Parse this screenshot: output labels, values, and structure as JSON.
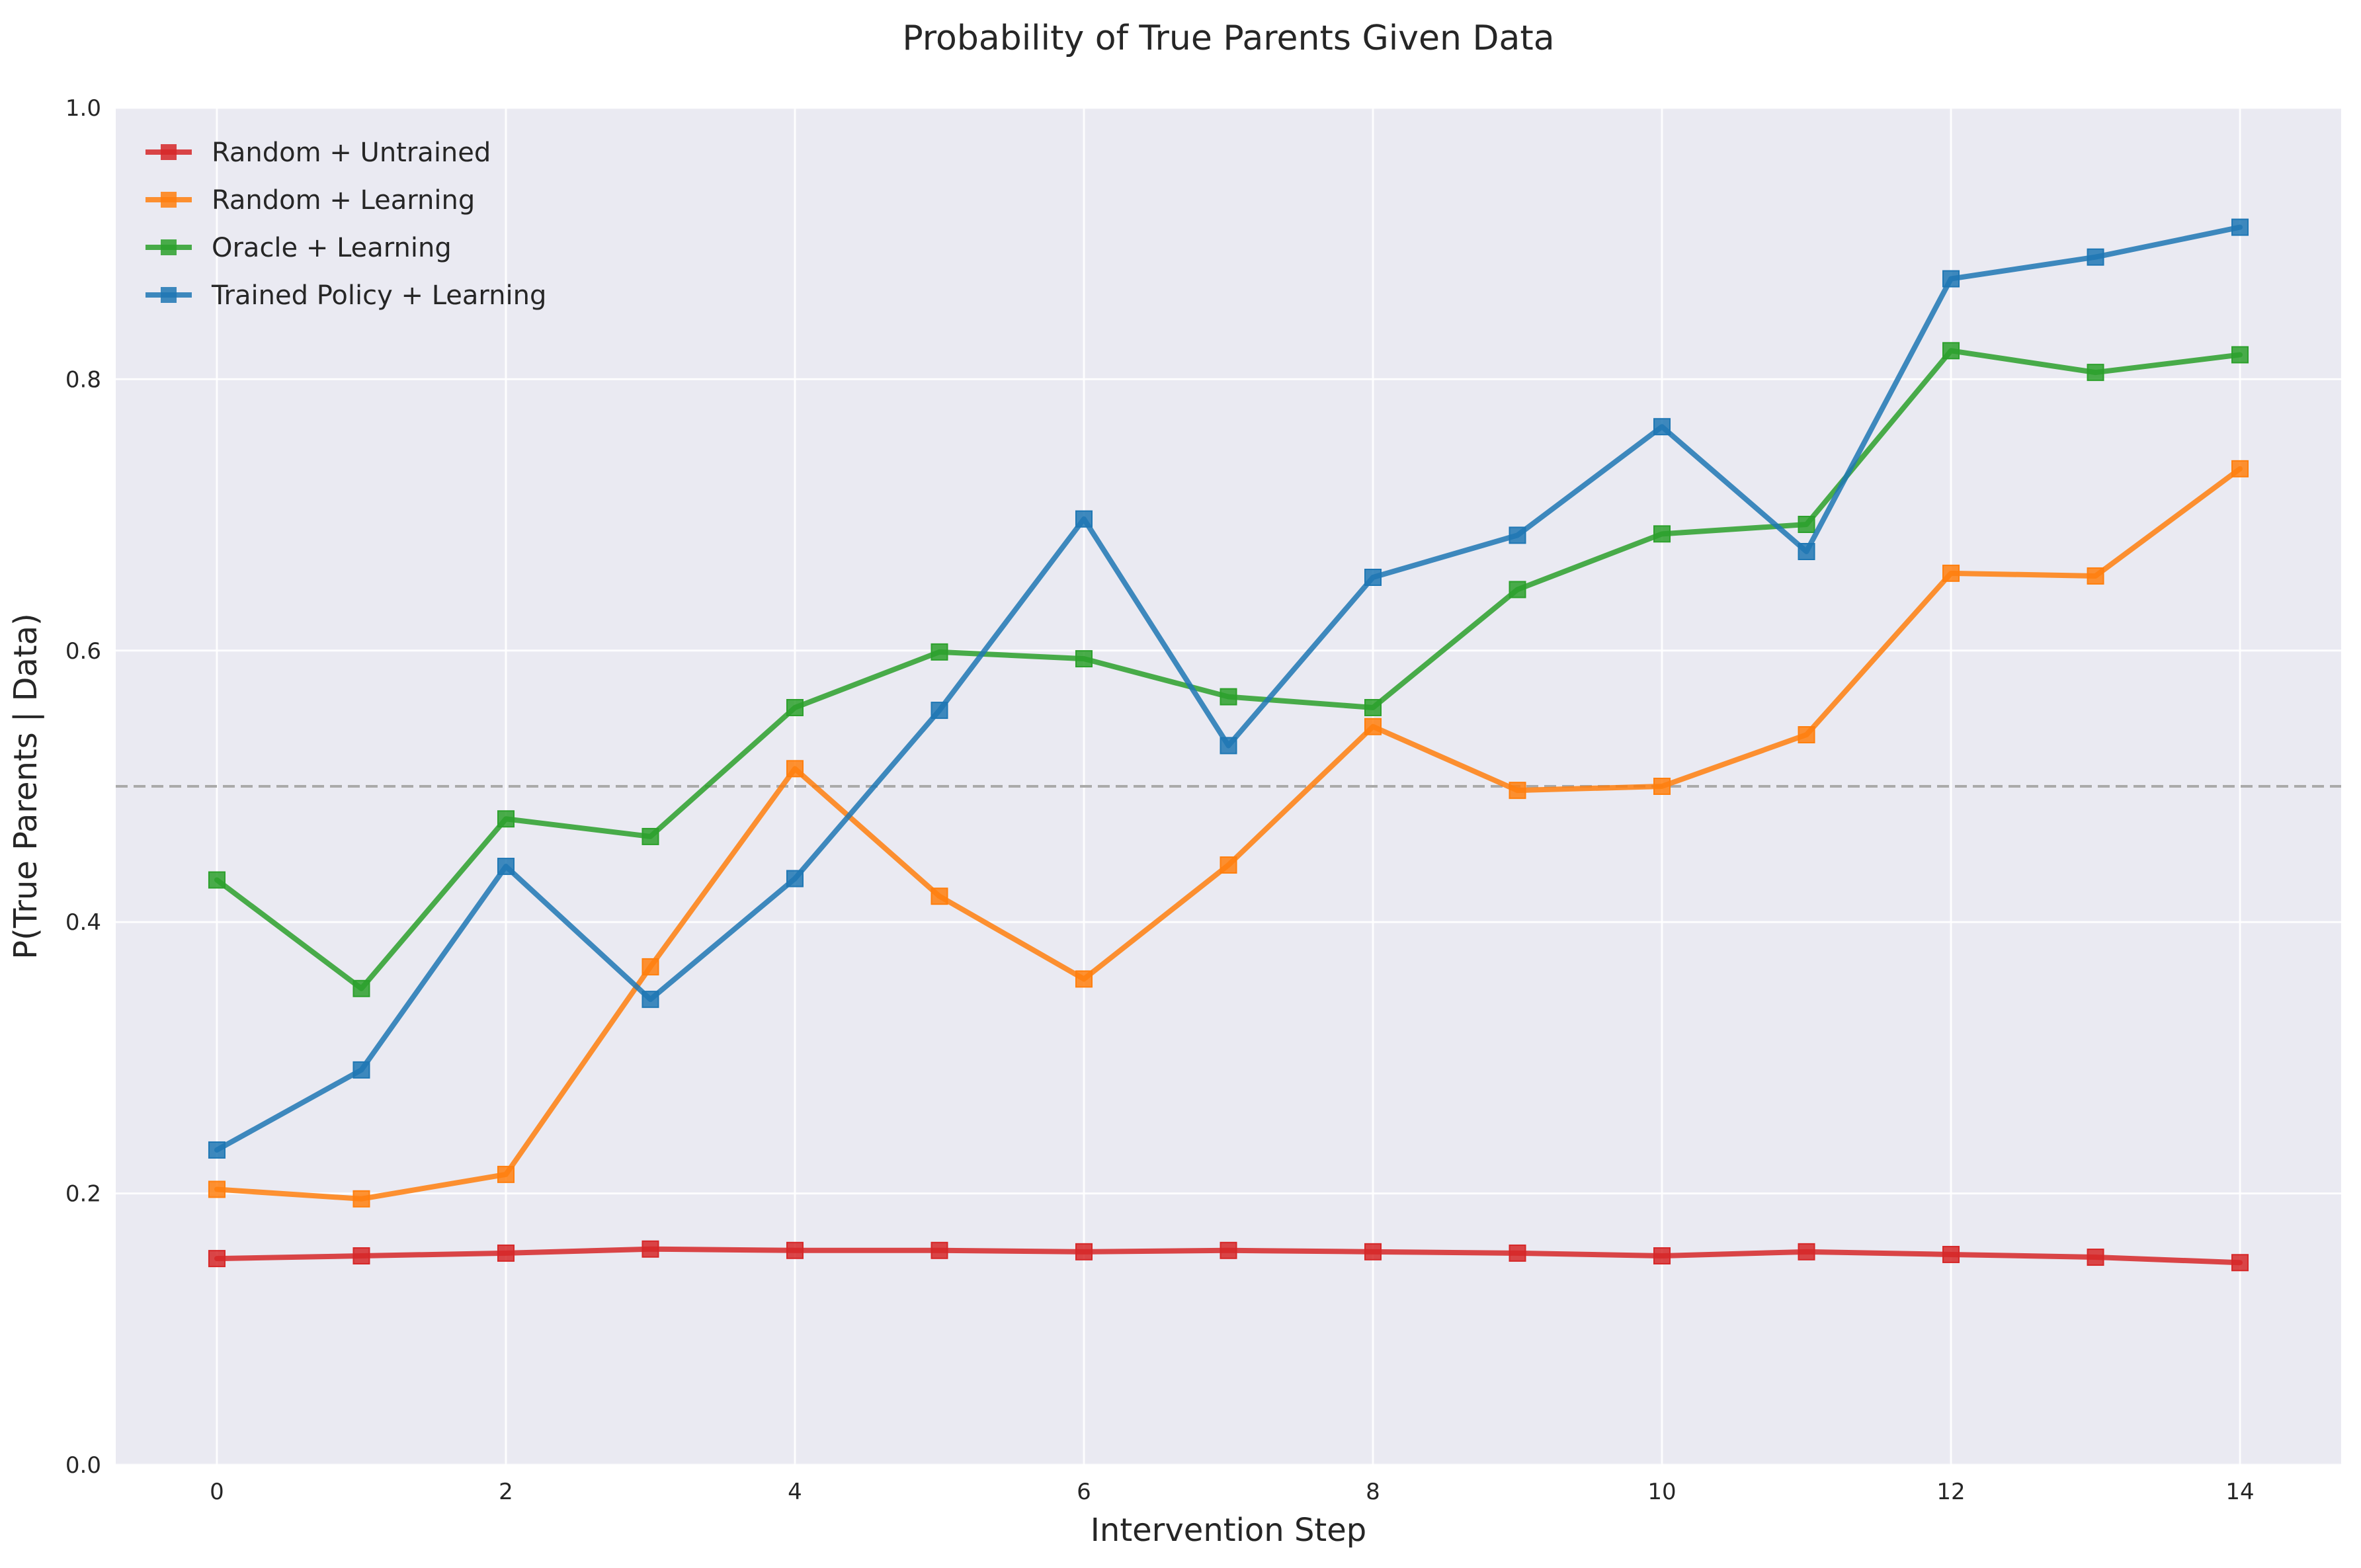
{
  "chart_data": {
    "type": "line",
    "title": "Probability of True Parents Given Data",
    "xlabel": "Intervention Step",
    "ylabel": "P(True Parents | Data)",
    "xlim": [
      -0.7,
      14.7
    ],
    "ylim": [
      0.0,
      1.0
    ],
    "xticks": [
      0,
      2,
      4,
      6,
      8,
      10,
      12,
      14
    ],
    "yticks": [
      0.0,
      0.2,
      0.4,
      0.6,
      0.8,
      1.0
    ],
    "grid": true,
    "legend_position": "top-left",
    "reference_line": {
      "y": 0.5,
      "style": "dashed",
      "color": "#aaaaaa"
    },
    "x": [
      0,
      1,
      2,
      3,
      4,
      5,
      6,
      7,
      8,
      9,
      10,
      11,
      12,
      13,
      14
    ],
    "series": [
      {
        "name": "Random + Untrained",
        "color": "#d62728",
        "marker": "square",
        "values": [
          0.152,
          0.154,
          0.156,
          0.159,
          0.158,
          0.158,
          0.157,
          0.158,
          0.157,
          0.156,
          0.154,
          0.157,
          0.155,
          0.153,
          0.149
        ]
      },
      {
        "name": "Random + Learning",
        "color": "#ff7f0e",
        "marker": "square",
        "values": [
          0.203,
          0.196,
          0.214,
          0.367,
          0.513,
          0.419,
          0.358,
          0.442,
          0.544,
          0.497,
          0.5,
          0.538,
          0.657,
          0.655,
          0.734
        ]
      },
      {
        "name": "Oracle + Learning",
        "color": "#2ca02c",
        "marker": "square",
        "values": [
          0.431,
          0.351,
          0.476,
          0.463,
          0.558,
          0.599,
          0.594,
          0.566,
          0.558,
          0.645,
          0.686,
          0.693,
          0.821,
          0.805,
          0.818
        ]
      },
      {
        "name": "Trained Policy + Learning",
        "color": "#1f77b4",
        "marker": "square",
        "values": [
          0.232,
          0.291,
          0.441,
          0.343,
          0.432,
          0.556,
          0.697,
          0.53,
          0.654,
          0.685,
          0.765,
          0.673,
          0.874,
          0.89,
          0.912
        ]
      }
    ]
  }
}
